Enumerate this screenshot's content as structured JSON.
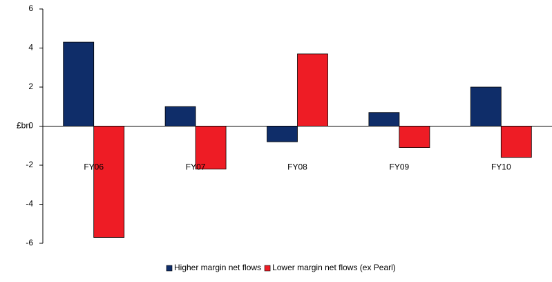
{
  "chart_data": {
    "type": "bar",
    "y_label": "£bn",
    "categories": [
      "FY06",
      "FY07",
      "FY08",
      "FY09",
      "FY10"
    ],
    "series": [
      {
        "name": "Higher margin net flows",
        "color": "#0f2d69",
        "values": [
          4.3,
          1.0,
          -0.8,
          0.7,
          2.0
        ]
      },
      {
        "name": "Lower margin net flows (ex Pearl)",
        "color": "#ee1c25",
        "values": [
          -5.7,
          -2.2,
          3.7,
          -1.1,
          -1.6
        ]
      }
    ],
    "ylim": [
      -6,
      6
    ],
    "yticks": [
      -6,
      -4,
      -2,
      0,
      2,
      4,
      6
    ],
    "grid": false,
    "legend": "bottom"
  }
}
